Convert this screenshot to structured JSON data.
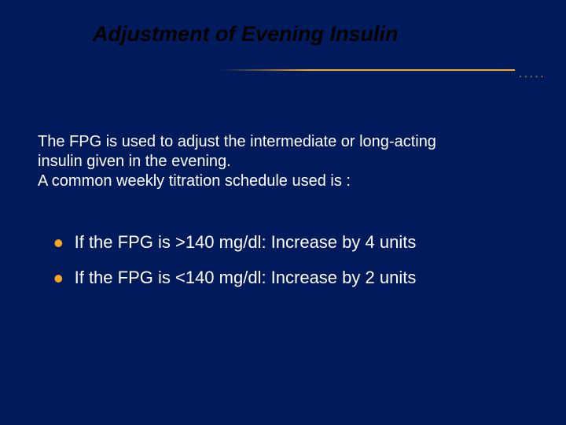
{
  "colors": {
    "background": "#001a5c",
    "title_text": "#000000",
    "body_text": "#ffffff",
    "accent": "#f5a623"
  },
  "typography": {
    "title_fontsize": 27,
    "title_fontstyle": "italic bold",
    "intro_fontsize": 20,
    "bullet_fontsize": 22,
    "font_family": "Arial"
  },
  "title": "Adjustment of Evening Insulin",
  "intro": {
    "line1": "The FPG is used to adjust the intermediate or long-acting",
    "line2": "insulin given in the evening.",
    "line3": " A common weekly titration schedule used is :"
  },
  "bullets": [
    {
      "text": "If the FPG is >140 mg/dl:  Increase by 4 units"
    },
    {
      "text": "If the FPG is <140 mg/dl: Increase by 2 units"
    }
  ],
  "divider_dots": "....."
}
